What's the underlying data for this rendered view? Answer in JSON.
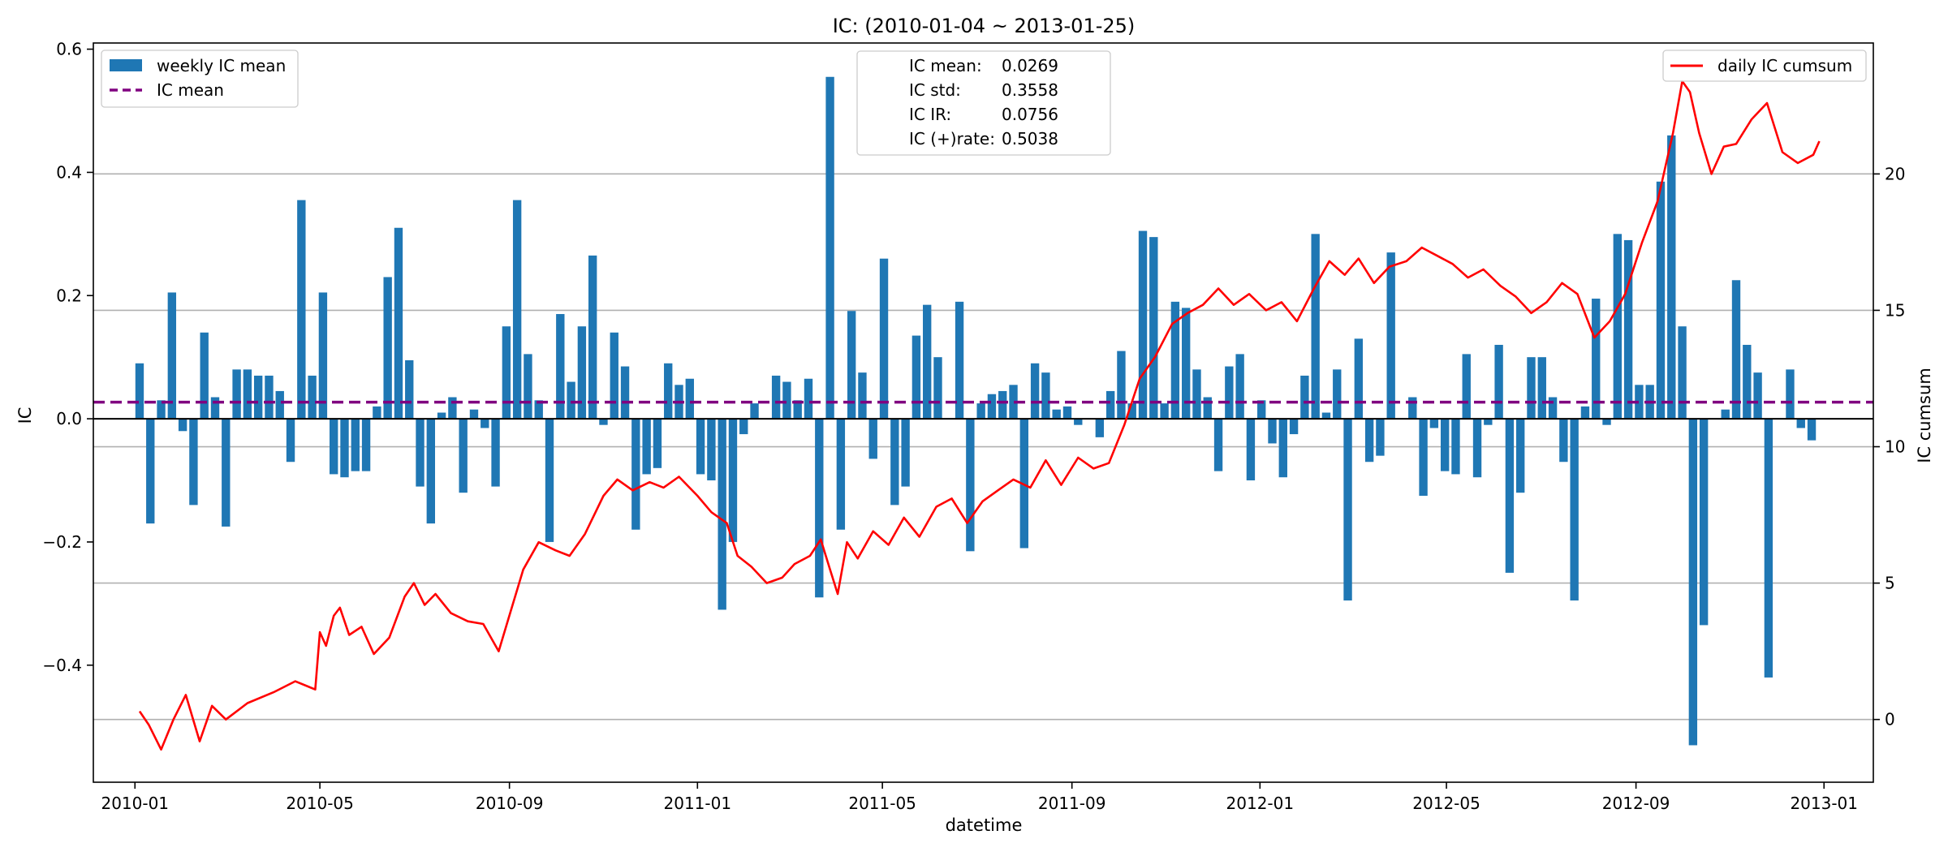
{
  "chart_data": {
    "type": "bar",
    "title": "IC: (2010-01-04 ~ 2013-01-25)",
    "xlabel": "datetime",
    "ylabel": "IC",
    "ylabel_right": "IC cumsum",
    "ylim": [
      -0.59,
      0.61
    ],
    "ylim_right": [
      -2.3,
      24.8
    ],
    "yticks": [
      "−0.4",
      "−0.2",
      "0.0",
      "0.2",
      "0.4",
      "0.6"
    ],
    "ytick_values": [
      -0.4,
      -0.2,
      0.0,
      0.2,
      0.4,
      0.6
    ],
    "yticks_right": [
      "0",
      "5",
      "10",
      "15",
      "20"
    ],
    "ytick_right_values": [
      0,
      5,
      10,
      15,
      20
    ],
    "xticks": [
      "2010-01",
      "2010-05",
      "2010-09",
      "2011-01",
      "2011-05",
      "2011-09",
      "2012-01",
      "2012-05",
      "2012-09",
      "2013-01"
    ],
    "grid": "right axis horizontal",
    "legend_left": [
      {
        "label": "weekly IC mean",
        "color": "#1f77b4",
        "kind": "bar"
      },
      {
        "label": "IC mean",
        "color": "#800080",
        "kind": "dashed-line"
      }
    ],
    "legend_right": [
      {
        "label": "daily IC cumsum",
        "color": "#ff0000",
        "kind": "line"
      }
    ],
    "stats_box": [
      {
        "label": "IC mean:",
        "value": "0.0269"
      },
      {
        "label": "IC std:",
        "value": "0.3558"
      },
      {
        "label": "IC IR:",
        "value": "0.0756"
      },
      {
        "label": "IC (+)rate:",
        "value": "0.5038"
      }
    ],
    "ic_mean": 0.0269,
    "series": [
      {
        "name": "weekly IC mean",
        "color": "#1f77b4",
        "start_week": "2010-01-04",
        "values": [
          0.09,
          -0.17,
          0.03,
          0.205,
          -0.02,
          -0.14,
          0.14,
          0.035,
          -0.175,
          0.08,
          0.08,
          0.07,
          0.07,
          0.045,
          -0.07,
          0.355,
          0.07,
          0.205,
          -0.09,
          -0.095,
          -0.085,
          -0.085,
          0.02,
          0.23,
          0.31,
          0.095,
          -0.11,
          -0.17,
          0.01,
          0.035,
          -0.12,
          0.015,
          -0.015,
          -0.11,
          0.15,
          0.355,
          0.105,
          0.03,
          -0.2,
          0.17,
          0.06,
          0.15,
          0.265,
          -0.01,
          0.14,
          0.085,
          -0.18,
          -0.09,
          -0.08,
          0.09,
          0.055,
          0.065,
          -0.09,
          -0.1,
          -0.31,
          -0.2,
          -0.025,
          0.025,
          0.0,
          0.07,
          0.06,
          0.03,
          0.065,
          -0.29,
          0.555,
          -0.18,
          0.175,
          0.075,
          -0.065,
          0.26,
          -0.14,
          -0.11,
          0.135,
          0.185,
          0.1,
          0.0,
          0.19,
          -0.215,
          0.025,
          0.04,
          0.045,
          0.055,
          -0.21,
          0.09,
          0.075,
          0.015,
          0.02,
          -0.01,
          0.0,
          -0.03,
          0.045,
          0.11,
          0.025,
          0.305,
          0.295,
          0.025,
          0.19,
          0.18,
          0.08,
          0.035,
          -0.085,
          0.085,
          0.105,
          -0.1,
          0.03,
          -0.04,
          -0.095,
          -0.025,
          0.07,
          0.3,
          0.01,
          0.08,
          -0.295,
          0.13,
          -0.07,
          -0.06,
          0.27,
          0.0,
          0.035,
          -0.125,
          -0.015,
          -0.085,
          -0.09,
          0.105,
          -0.095,
          -0.01,
          0.12,
          -0.25,
          -0.12,
          0.1,
          0.1,
          0.035,
          -0.07,
          -0.295,
          0.02,
          0.195,
          -0.01,
          0.3,
          0.29,
          0.055,
          0.055,
          0.385,
          0.46,
          0.15,
          -0.53,
          -0.335,
          0.0,
          0.015,
          0.225,
          0.12,
          0.075,
          -0.42,
          0.0,
          0.08,
          -0.015,
          -0.035
        ]
      },
      {
        "name": "daily IC cumsum",
        "color": "#ff0000",
        "points": [
          [
            "2010-01-04",
            0.3
          ],
          [
            "2010-01-10",
            -0.2
          ],
          [
            "2010-01-18",
            -1.1
          ],
          [
            "2010-01-26",
            0.0
          ],
          [
            "2010-02-03",
            0.9
          ],
          [
            "2010-02-12",
            -0.8
          ],
          [
            "2010-02-20",
            0.5
          ],
          [
            "2010-03-01",
            0.0
          ],
          [
            "2010-03-15",
            0.6
          ],
          [
            "2010-04-01",
            1.0
          ],
          [
            "2010-04-15",
            1.4
          ],
          [
            "2010-04-28",
            1.1
          ],
          [
            "2010-05-01",
            3.2
          ],
          [
            "2010-05-05",
            2.7
          ],
          [
            "2010-05-10",
            3.8
          ],
          [
            "2010-05-14",
            4.1
          ],
          [
            "2010-05-20",
            3.1
          ],
          [
            "2010-05-28",
            3.4
          ],
          [
            "2010-06-05",
            2.4
          ],
          [
            "2010-06-15",
            3.0
          ],
          [
            "2010-06-25",
            4.5
          ],
          [
            "2010-07-01",
            5.0
          ],
          [
            "2010-07-08",
            4.2
          ],
          [
            "2010-07-15",
            4.6
          ],
          [
            "2010-07-25",
            3.9
          ],
          [
            "2010-08-05",
            3.6
          ],
          [
            "2010-08-15",
            3.5
          ],
          [
            "2010-08-25",
            2.5
          ],
          [
            "2010-09-02",
            4.0
          ],
          [
            "2010-09-10",
            5.5
          ],
          [
            "2010-09-20",
            6.5
          ],
          [
            "2010-10-01",
            6.2
          ],
          [
            "2010-10-10",
            6.0
          ],
          [
            "2010-10-20",
            6.8
          ],
          [
            "2010-11-01",
            8.2
          ],
          [
            "2010-11-10",
            8.8
          ],
          [
            "2010-11-20",
            8.4
          ],
          [
            "2010-12-01",
            8.7
          ],
          [
            "2010-12-10",
            8.5
          ],
          [
            "2010-12-20",
            8.9
          ],
          [
            "2011-01-01",
            8.2
          ],
          [
            "2011-01-10",
            7.6
          ],
          [
            "2011-01-20",
            7.2
          ],
          [
            "2011-01-27",
            6.0
          ],
          [
            "2011-02-05",
            5.6
          ],
          [
            "2011-02-15",
            5.0
          ],
          [
            "2011-02-25",
            5.2
          ],
          [
            "2011-03-05",
            5.7
          ],
          [
            "2011-03-15",
            6.0
          ],
          [
            "2011-03-22",
            6.6
          ],
          [
            "2011-03-28",
            5.5
          ],
          [
            "2011-04-02",
            4.6
          ],
          [
            "2011-04-08",
            6.5
          ],
          [
            "2011-04-15",
            5.9
          ],
          [
            "2011-04-25",
            6.9
          ],
          [
            "2011-05-05",
            6.4
          ],
          [
            "2011-05-15",
            7.4
          ],
          [
            "2011-05-25",
            6.7
          ],
          [
            "2011-06-05",
            7.8
          ],
          [
            "2011-06-15",
            8.1
          ],
          [
            "2011-06-25",
            7.2
          ],
          [
            "2011-07-05",
            8.0
          ],
          [
            "2011-07-15",
            8.4
          ],
          [
            "2011-07-25",
            8.8
          ],
          [
            "2011-08-05",
            8.5
          ],
          [
            "2011-08-15",
            9.5
          ],
          [
            "2011-08-25",
            8.6
          ],
          [
            "2011-09-05",
            9.6
          ],
          [
            "2011-09-15",
            9.2
          ],
          [
            "2011-09-25",
            9.4
          ],
          [
            "2011-10-05",
            10.8
          ],
          [
            "2011-10-15",
            12.5
          ],
          [
            "2011-10-25",
            13.3
          ],
          [
            "2011-11-05",
            14.5
          ],
          [
            "2011-11-15",
            14.9
          ],
          [
            "2011-11-25",
            15.2
          ],
          [
            "2011-12-05",
            15.8
          ],
          [
            "2011-12-15",
            15.2
          ],
          [
            "2011-12-25",
            15.6
          ],
          [
            "2012-01-05",
            15.0
          ],
          [
            "2012-01-15",
            15.3
          ],
          [
            "2012-01-25",
            14.6
          ],
          [
            "2012-02-05",
            15.8
          ],
          [
            "2012-02-15",
            16.8
          ],
          [
            "2012-02-25",
            16.3
          ],
          [
            "2012-03-05",
            16.9
          ],
          [
            "2012-03-15",
            16.0
          ],
          [
            "2012-03-25",
            16.6
          ],
          [
            "2012-04-05",
            16.8
          ],
          [
            "2012-04-15",
            17.3
          ],
          [
            "2012-04-25",
            17.0
          ],
          [
            "2012-05-05",
            16.7
          ],
          [
            "2012-05-15",
            16.2
          ],
          [
            "2012-05-25",
            16.5
          ],
          [
            "2012-06-05",
            15.9
          ],
          [
            "2012-06-15",
            15.5
          ],
          [
            "2012-06-25",
            14.9
          ],
          [
            "2012-07-05",
            15.3
          ],
          [
            "2012-07-15",
            16.0
          ],
          [
            "2012-07-25",
            15.6
          ],
          [
            "2012-08-05",
            14.0
          ],
          [
            "2012-08-15",
            14.6
          ],
          [
            "2012-08-25",
            15.6
          ],
          [
            "2012-09-05",
            17.5
          ],
          [
            "2012-09-15",
            19.0
          ],
          [
            "2012-09-25",
            21.5
          ],
          [
            "2012-10-01",
            23.4
          ],
          [
            "2012-10-06",
            23.0
          ],
          [
            "2012-10-12",
            21.5
          ],
          [
            "2012-10-20",
            20.0
          ],
          [
            "2012-10-28",
            21.0
          ],
          [
            "2012-11-05",
            21.1
          ],
          [
            "2012-11-15",
            22.0
          ],
          [
            "2012-11-25",
            22.6
          ],
          [
            "2012-12-05",
            20.8
          ],
          [
            "2012-12-15",
            20.4
          ],
          [
            "2012-12-25",
            20.7
          ],
          [
            "2012-12-29",
            21.2
          ]
        ]
      }
    ]
  }
}
